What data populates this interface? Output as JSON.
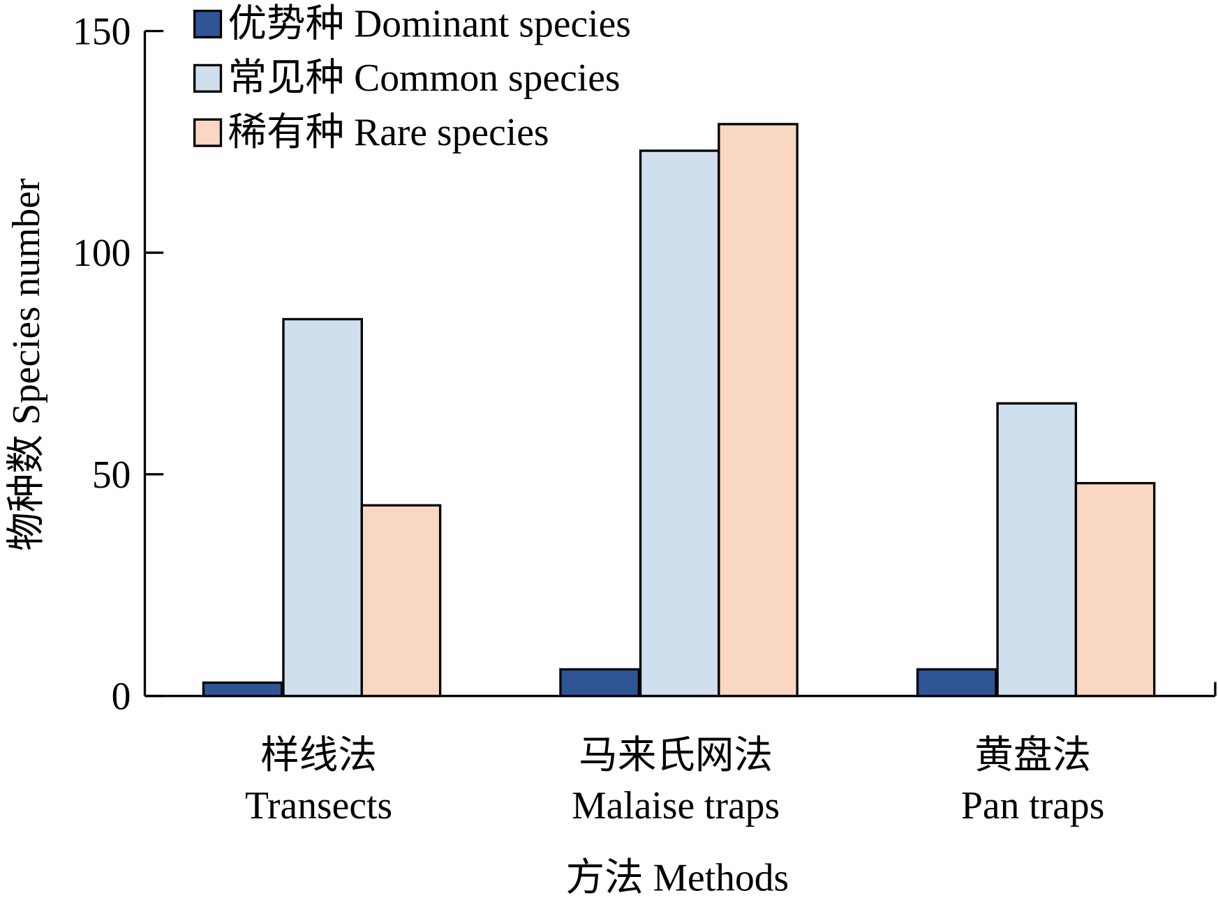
{
  "chart_data": {
    "type": "bar",
    "title": "",
    "xlabel": "方法 Methods",
    "ylabel": "物种数 Species number",
    "ylim": [
      0,
      150
    ],
    "yticks": [
      0,
      50,
      100,
      150
    ],
    "ytick_labels": [
      "0",
      "50",
      "100",
      "150"
    ],
    "categories": [
      {
        "zh": "样线法",
        "en": "Transects"
      },
      {
        "zh": "马来氏网法",
        "en": "Malaise traps"
      },
      {
        "zh": "黄盘法",
        "en": "Pan traps"
      }
    ],
    "series": [
      {
        "name": "优势种 Dominant species",
        "color": "#2f5597",
        "values": [
          3,
          6,
          6
        ]
      },
      {
        "name": "常见种 Common species",
        "color": "#d0dfee",
        "values": [
          85,
          123,
          66
        ]
      },
      {
        "name": "稀有种 Rare species",
        "color": "#f9d7c3",
        "values": [
          43,
          129,
          48
        ]
      }
    ],
    "legend_position": "top-left",
    "grid": false
  }
}
